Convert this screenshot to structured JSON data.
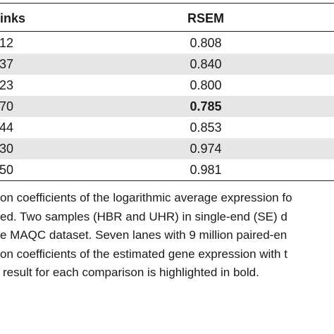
{
  "table": {
    "headers": [
      "inks",
      "RSEM"
    ],
    "rows": [
      {
        "col1": "12",
        "col2": "0.808",
        "bold": false,
        "shaded": false
      },
      {
        "col1": "37",
        "col2": "0.840",
        "bold": false,
        "shaded": true
      },
      {
        "col1": "23",
        "col2": "0.800",
        "bold": false,
        "shaded": false
      },
      {
        "col1": "70",
        "col2": "0.785",
        "bold": true,
        "shaded": true
      },
      {
        "col1": "44",
        "col2": "0.853",
        "bold": false,
        "shaded": false
      },
      {
        "col1": "30",
        "col2": "0.974",
        "bold": false,
        "shaded": true
      },
      {
        "col1": "50",
        "col2": "0.981",
        "bold": false,
        "shaded": false
      }
    ]
  },
  "caption": {
    "lines": [
      "on coefficients of the logarithmic average expression fo",
      "ed. Two samples (HBR and UHR) in single-end (SE) d",
      "e MAQC dataset. Seven lanes with 9 million paired-en",
      "on coefficients of the estimated gene expression with t",
      "result for each comparison is highlighted in bold."
    ]
  }
}
